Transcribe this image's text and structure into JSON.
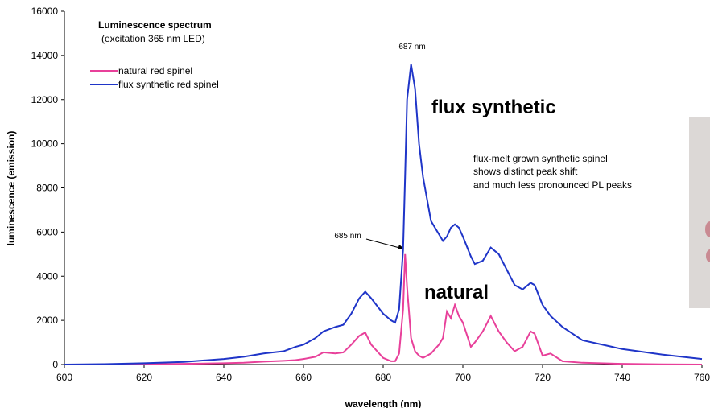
{
  "chart_data": {
    "type": "line",
    "title": "Luminescence spectrum",
    "subtitle": "(excitation 365 nm LED)",
    "x_label": "wavelength (nm)",
    "y_label": "luminescence (emission)",
    "annotations": [
      "687 nm",
      "685 nm",
      "flux synthetic",
      "natural",
      "flux-melt grown synthetic spinel",
      "shows distinct peak shift",
      "and much less pronounced PL peaks"
    ],
    "x": [
      600,
      610,
      620,
      630,
      640,
      645,
      650,
      655,
      658,
      660,
      663,
      665,
      668,
      670,
      672,
      674,
      675.5,
      677,
      680,
      682,
      683,
      684,
      685,
      685.5,
      686,
      687,
      688,
      689,
      690,
      692,
      694,
      695,
      696,
      697,
      698,
      699,
      700,
      702,
      703,
      705,
      707,
      709,
      711,
      713,
      715,
      717,
      718,
      720,
      722,
      725,
      730,
      740,
      750,
      760
    ],
    "series": [
      {
        "name": "natural red spinel",
        "color": "#e8409a",
        "values": [
          0,
          0,
          10,
          30,
          60,
          80,
          130,
          170,
          200,
          250,
          350,
          550,
          500,
          550,
          900,
          1300,
          1450,
          900,
          300,
          150,
          150,
          500,
          2500,
          5000,
          3500,
          1200,
          600,
          400,
          300,
          500,
          900,
          1200,
          2400,
          2100,
          2700,
          2200,
          1900,
          800,
          1000,
          1500,
          2200,
          1500,
          1000,
          600,
          800,
          1500,
          1400,
          400,
          500,
          150,
          80,
          30,
          10,
          0
        ]
      },
      {
        "name": "flux synthetic red spinel",
        "color": "#1f35c8",
        "values": [
          0,
          20,
          60,
          120,
          250,
          350,
          500,
          600,
          800,
          900,
          1200,
          1500,
          1700,
          1800,
          2300,
          3000,
          3300,
          3000,
          2300,
          2000,
          1900,
          2500,
          5200,
          8500,
          12000,
          13600,
          12500,
          10000,
          8500,
          6500,
          5900,
          5600,
          5800,
          6200,
          6350,
          6200,
          5800,
          4900,
          4550,
          4700,
          5300,
          5000,
          4300,
          3600,
          3400,
          3700,
          3600,
          2700,
          2200,
          1700,
          1100,
          700,
          450,
          250
        ]
      }
    ],
    "xlim": [
      600,
      760
    ],
    "xticks": [
      600,
      620,
      640,
      660,
      680,
      700,
      720,
      740,
      760
    ],
    "ylim": [
      0,
      16000
    ],
    "yticks": [
      0,
      2000,
      4000,
      6000,
      8000,
      10000,
      12000,
      14000,
      16000
    ],
    "grid": false
  }
}
